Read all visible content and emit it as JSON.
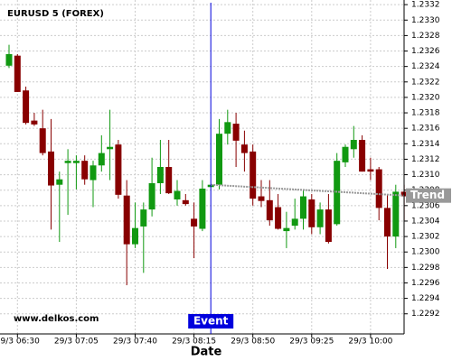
{
  "chart_data": {
    "type": "candlestick",
    "title": "EURUSD 5 (FOREX)",
    "x_label": "Date",
    "watermark": "www.delkos.com",
    "categories": [
      null,
      "29/3 06:30",
      null,
      null,
      null,
      null,
      null,
      null,
      "29/3 07:05",
      null,
      null,
      null,
      null,
      null,
      null,
      "29/3 07:40",
      null,
      null,
      null,
      null,
      null,
      null,
      "29/3 08:15",
      null,
      null,
      null,
      null,
      null,
      null,
      "29/3 08:50",
      null,
      null,
      null,
      null,
      null,
      null,
      "29/3 09:25",
      null,
      null,
      null,
      null,
      null,
      null,
      "29/3 10:00",
      null,
      null,
      null,
      null
    ],
    "open": [
      1.23241,
      1.23254,
      1.23209,
      1.2317,
      1.2316,
      1.2313,
      1.23087,
      1.23115,
      1.23115,
      1.23118,
      1.23093,
      1.23112,
      1.23133,
      1.23139,
      1.23073,
      1.2301,
      1.23033,
      1.23055,
      1.23089,
      1.2311,
      1.23068,
      1.23067,
      1.23043,
      1.2303,
      1.23084,
      1.23087,
      1.23153,
      1.23166,
      1.23139,
      1.2313,
      1.23072,
      1.23067,
      1.23058,
      1.23027,
      1.23034,
      1.23043,
      1.23068,
      1.23032,
      1.23055,
      1.23036,
      1.23116,
      1.23133,
      1.23145,
      1.23107,
      1.23107,
      1.23057,
      1.2302,
      1.23078
    ],
    "high": [
      1.23268,
      1.23256,
      1.23214,
      1.2318,
      1.23184,
      1.23172,
      1.23104,
      1.23133,
      1.23125,
      1.23125,
      1.23118,
      1.23151,
      1.23184,
      1.23145,
      1.23093,
      1.23064,
      1.23064,
      1.23122,
      1.23145,
      1.23145,
      1.23093,
      1.23075,
      1.23064,
      1.23093,
      1.23087,
      1.23172,
      1.23184,
      1.2318,
      1.23157,
      1.23139,
      1.23093,
      1.23093,
      1.23075,
      1.23052,
      1.23069,
      1.23081,
      1.23075,
      1.23064,
      1.23075,
      1.23128,
      1.23139,
      1.23163,
      1.23151,
      1.23122,
      1.2311,
      1.23075,
      1.23087,
      1.23087
    ],
    "low": [
      1.23238,
      1.23207,
      1.23165,
      1.23163,
      1.23125,
      1.23029,
      1.23013,
      1.23048,
      1.23081,
      1.23087,
      1.23058,
      1.23104,
      1.23093,
      1.23069,
      1.22957,
      1.23005,
      1.22973,
      1.23046,
      1.23075,
      1.23075,
      1.2306,
      1.2306,
      1.22992,
      1.23027,
      1.23084,
      1.23081,
      1.23139,
      1.2311,
      1.23104,
      1.2306,
      1.23058,
      1.23034,
      1.23029,
      1.23005,
      1.23029,
      1.23029,
      1.23023,
      1.23023,
      1.23011,
      1.23034,
      1.2311,
      1.23122,
      1.23104,
      1.23093,
      1.23041,
      1.22978,
      1.23005,
      1.23041
    ],
    "close": [
      1.23256,
      1.23207,
      1.23167,
      1.23165,
      1.23128,
      1.23086,
      1.23094,
      1.23118,
      1.23118,
      1.23094,
      1.23112,
      1.23128,
      1.23136,
      1.23074,
      1.2301,
      1.23031,
      1.23055,
      1.23089,
      1.2311,
      1.23076,
      1.23079,
      1.23062,
      1.23033,
      1.23082,
      1.23087,
      1.23153,
      1.23168,
      1.23144,
      1.23128,
      1.23069,
      1.23066,
      1.23041,
      1.2303,
      1.23031,
      1.23043,
      1.23072,
      1.23032,
      1.23055,
      1.23013,
      1.23118,
      1.23136,
      1.23145,
      1.23104,
      1.23104,
      1.23057,
      1.2302,
      1.23078,
      1.23072
    ],
    "up_color": "#119911",
    "down_color": "#880000",
    "ylim": [
      1.22894,
      1.23326
    ],
    "yticks": [
      1.2292,
      1.2294,
      1.2296,
      1.2298,
      {
        "value": 1.23,
        "label": "1.2300"
      },
      1.2302,
      1.2304,
      1.2306,
      1.2308,
      {
        "value": 1.231,
        "label": "1.2310"
      },
      1.2312,
      1.2314,
      1.2316,
      1.2318,
      {
        "value": 1.232,
        "label": "1.2320"
      },
      1.2322,
      1.2324,
      1.2326,
      1.2328,
      {
        "value": 1.233,
        "label": "1.2330"
      },
      1.2332
    ],
    "grid": true,
    "event": {
      "label": "Event",
      "index": 24,
      "color": "#0000dd"
    },
    "trend": {
      "label": "Trend",
      "index": [
        24,
        47
      ],
      "values": [
        1.23087,
        1.23073
      ],
      "color": "#999999"
    }
  }
}
